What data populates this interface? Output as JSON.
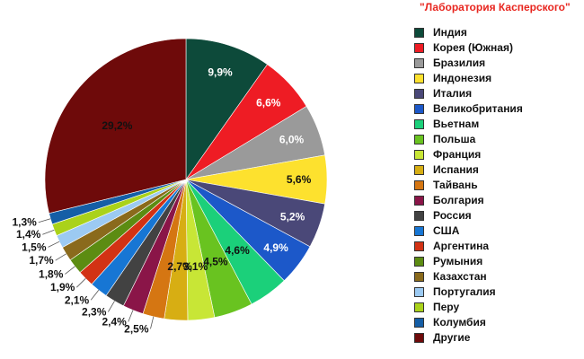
{
  "header": {
    "source": "\"Лаборатория Касперского\""
  },
  "chart_data": {
    "type": "pie",
    "title": "",
    "legend_position": "right",
    "slices": [
      {
        "label": "Индия",
        "value": 9.9,
        "display": "9,9%",
        "color": "#0d4a3a"
      },
      {
        "label": "Корея (Южная)",
        "value": 6.6,
        "display": "6,6%",
        "color": "#ee1c24"
      },
      {
        "label": "Бразилия",
        "value": 6.0,
        "display": "6,0%",
        "color": "#9a9a9a"
      },
      {
        "label": "Индонезия",
        "value": 5.6,
        "display": "5,6%",
        "color": "#fde12e"
      },
      {
        "label": "Италия",
        "value": 5.2,
        "display": "5,2%",
        "color": "#4a4878"
      },
      {
        "label": "Великобритания",
        "value": 4.9,
        "display": "4,9%",
        "color": "#1c58c9"
      },
      {
        "label": "Вьетнам",
        "value": 4.6,
        "display": "4,6%",
        "color": "#1bd07a"
      },
      {
        "label": "Польша",
        "value": 4.5,
        "display": "4,5%",
        "color": "#69c320"
      },
      {
        "label": "Франция",
        "value": 3.1,
        "display": "3,1%",
        "color": "#c8e636"
      },
      {
        "label": "Испания",
        "value": 2.7,
        "display": "2,7%",
        "color": "#d7ae13"
      },
      {
        "label": "Тайвань",
        "value": 2.5,
        "display": "2,5%",
        "color": "#d57612"
      },
      {
        "label": "Болгария",
        "value": 2.4,
        "display": "2,4%",
        "color": "#8a1548"
      },
      {
        "label": "Россия",
        "value": 2.3,
        "display": "2,3%",
        "color": "#424242"
      },
      {
        "label": "США",
        "value": 2.1,
        "display": "2,1%",
        "color": "#1776d4"
      },
      {
        "label": "Аргентина",
        "value": 1.9,
        "display": "1,9%",
        "color": "#d23214"
      },
      {
        "label": "Румыния",
        "value": 1.8,
        "display": "1,8%",
        "color": "#5c8c12"
      },
      {
        "label": "Казахстан",
        "value": 1.7,
        "display": "1,7%",
        "color": "#8a6a1c"
      },
      {
        "label": "Португалия",
        "value": 1.5,
        "display": "1,5%",
        "color": "#9ccaf2"
      },
      {
        "label": "Перу",
        "value": 1.4,
        "display": "1,4%",
        "color": "#aad21a"
      },
      {
        "label": "Колумбия",
        "value": 1.3,
        "display": "1,3%",
        "color": "#155ea6"
      },
      {
        "label": "Другие",
        "value": 29.2,
        "display": "29,2%",
        "color": "#6e0a0a"
      }
    ]
  }
}
